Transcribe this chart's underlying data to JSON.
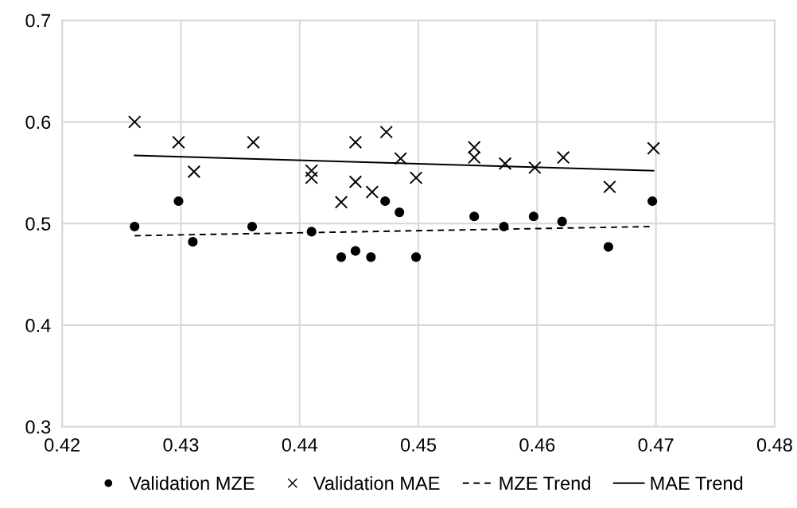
{
  "chart_data": {
    "type": "scatter",
    "xlim": [
      0.42,
      0.48
    ],
    "xticks": [
      0.42,
      0.43,
      0.44,
      0.45,
      0.46,
      0.47,
      0.48
    ],
    "ylim": [
      0.3,
      0.7
    ],
    "yticks": [
      0.3,
      0.4,
      0.5,
      0.6,
      0.7
    ],
    "grid": true,
    "legend": "bottom",
    "series": [
      {
        "name": "Validation MZE",
        "marker": "circle",
        "color": "#000000",
        "x": [
          0.4261,
          0.4298,
          0.431,
          0.436,
          0.441,
          0.4435,
          0.4447,
          0.446,
          0.4472,
          0.4484,
          0.4498,
          0.4547,
          0.4572,
          0.4597,
          0.4621,
          0.466,
          0.4697
        ],
        "values": [
          0.497,
          0.522,
          0.482,
          0.497,
          0.492,
          0.467,
          0.473,
          0.467,
          0.522,
          0.511,
          0.467,
          0.507,
          0.497,
          0.507,
          0.502,
          0.477,
          0.522
        ]
      },
      {
        "name": "Validation MAE",
        "marker": "cross",
        "color": "#000000",
        "x": [
          0.4261,
          0.4298,
          0.4311,
          0.4361,
          0.441,
          0.441,
          0.4435,
          0.4447,
          0.4447,
          0.4461,
          0.4473,
          0.4485,
          0.4498,
          0.4547,
          0.4547,
          0.4573,
          0.4598,
          0.4622,
          0.4661,
          0.4698
        ],
        "values": [
          0.6,
          0.58,
          0.551,
          0.58,
          0.552,
          0.545,
          0.521,
          0.58,
          0.541,
          0.531,
          0.59,
          0.564,
          0.545,
          0.575,
          0.565,
          0.559,
          0.555,
          0.565,
          0.536,
          0.574
        ]
      },
      {
        "name": "MZE Trend",
        "type": "line",
        "line_style": "dashed",
        "color": "#000000",
        "x": [
          0.4261,
          0.4695
        ],
        "values": [
          0.488,
          0.497
        ]
      },
      {
        "name": "MAE Trend",
        "type": "line",
        "line_style": "solid",
        "color": "#000000",
        "x": [
          0.4261,
          0.4698
        ],
        "values": [
          0.567,
          0.552
        ]
      }
    ]
  }
}
